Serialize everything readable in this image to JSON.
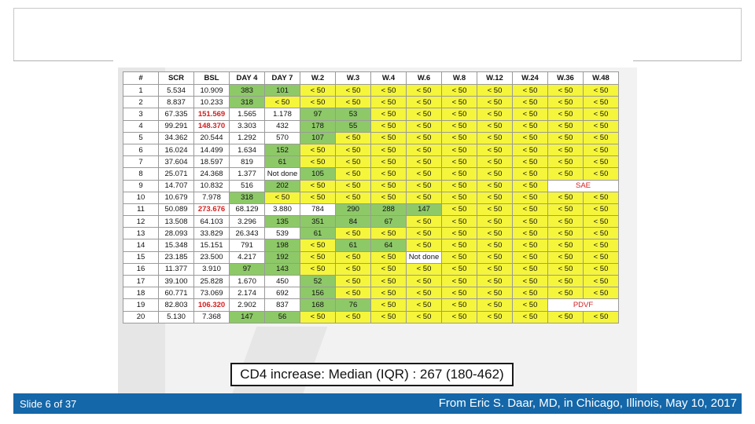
{
  "table": {
    "headers": [
      "#",
      "SCR",
      "BSL",
      "DAY 4",
      "DAY 7",
      "W.2",
      "W.3",
      "W.4",
      "W.6",
      "W.8",
      "W.12",
      "W.24",
      "W.36",
      "W.48"
    ],
    "rows": [
      [
        {
          "v": "1",
          "c": "w"
        },
        {
          "v": "5.534",
          "c": "w"
        },
        {
          "v": "10.909",
          "c": "w"
        },
        {
          "v": "383",
          "c": "g"
        },
        {
          "v": "101",
          "c": "g"
        },
        {
          "v": "< 50",
          "c": "y"
        },
        {
          "v": "< 50",
          "c": "y"
        },
        {
          "v": "< 50",
          "c": "y"
        },
        {
          "v": "< 50",
          "c": "y"
        },
        {
          "v": "< 50",
          "c": "y"
        },
        {
          "v": "< 50",
          "c": "y"
        },
        {
          "v": "< 50",
          "c": "y"
        },
        {
          "v": "< 50",
          "c": "y"
        },
        {
          "v": "< 50",
          "c": "y"
        }
      ],
      [
        {
          "v": "2",
          "c": "w"
        },
        {
          "v": "8.837",
          "c": "w"
        },
        {
          "v": "10.233",
          "c": "w"
        },
        {
          "v": "318",
          "c": "g"
        },
        {
          "v": "< 50",
          "c": "y"
        },
        {
          "v": "< 50",
          "c": "y"
        },
        {
          "v": "< 50",
          "c": "y"
        },
        {
          "v": "< 50",
          "c": "y"
        },
        {
          "v": "< 50",
          "c": "y"
        },
        {
          "v": "< 50",
          "c": "y"
        },
        {
          "v": "< 50",
          "c": "y"
        },
        {
          "v": "< 50",
          "c": "y"
        },
        {
          "v": "< 50",
          "c": "y"
        },
        {
          "v": "< 50",
          "c": "y"
        }
      ],
      [
        {
          "v": "3",
          "c": "w"
        },
        {
          "v": "67.335",
          "c": "w"
        },
        {
          "v": "151.569",
          "c": "w",
          "s": "red"
        },
        {
          "v": "1.565",
          "c": "w"
        },
        {
          "v": "1.178",
          "c": "w"
        },
        {
          "v": "97",
          "c": "g"
        },
        {
          "v": "53",
          "c": "g"
        },
        {
          "v": "< 50",
          "c": "y"
        },
        {
          "v": "< 50",
          "c": "y"
        },
        {
          "v": "< 50",
          "c": "y"
        },
        {
          "v": "< 50",
          "c": "y"
        },
        {
          "v": "< 50",
          "c": "y"
        },
        {
          "v": "< 50",
          "c": "y"
        },
        {
          "v": "< 50",
          "c": "y"
        }
      ],
      [
        {
          "v": "4",
          "c": "w"
        },
        {
          "v": "99.291",
          "c": "w"
        },
        {
          "v": "148.370",
          "c": "w",
          "s": "red"
        },
        {
          "v": "3.303",
          "c": "w"
        },
        {
          "v": "432",
          "c": "w"
        },
        {
          "v": "178",
          "c": "g"
        },
        {
          "v": "55",
          "c": "g"
        },
        {
          "v": "< 50",
          "c": "y"
        },
        {
          "v": "< 50",
          "c": "y"
        },
        {
          "v": "< 50",
          "c": "y"
        },
        {
          "v": "< 50",
          "c": "y"
        },
        {
          "v": "< 50",
          "c": "y"
        },
        {
          "v": "< 50",
          "c": "y"
        },
        {
          "v": "< 50",
          "c": "y"
        }
      ],
      [
        {
          "v": "5",
          "c": "w"
        },
        {
          "v": "34.362",
          "c": "w"
        },
        {
          "v": "20.544",
          "c": "w"
        },
        {
          "v": "1.292",
          "c": "w"
        },
        {
          "v": "570",
          "c": "w"
        },
        {
          "v": "107",
          "c": "g"
        },
        {
          "v": "< 50",
          "c": "y"
        },
        {
          "v": "< 50",
          "c": "y"
        },
        {
          "v": "< 50",
          "c": "y"
        },
        {
          "v": "< 50",
          "c": "y"
        },
        {
          "v": "< 50",
          "c": "y"
        },
        {
          "v": "< 50",
          "c": "y"
        },
        {
          "v": "< 50",
          "c": "y"
        },
        {
          "v": "< 50",
          "c": "y"
        }
      ],
      [
        {
          "v": "6",
          "c": "w"
        },
        {
          "v": "16.024",
          "c": "w"
        },
        {
          "v": "14.499",
          "c": "w"
        },
        {
          "v": "1.634",
          "c": "w"
        },
        {
          "v": "152",
          "c": "g"
        },
        {
          "v": "< 50",
          "c": "y"
        },
        {
          "v": "< 50",
          "c": "y"
        },
        {
          "v": "< 50",
          "c": "y"
        },
        {
          "v": "< 50",
          "c": "y"
        },
        {
          "v": "< 50",
          "c": "y"
        },
        {
          "v": "< 50",
          "c": "y"
        },
        {
          "v": "< 50",
          "c": "y"
        },
        {
          "v": "< 50",
          "c": "y"
        },
        {
          "v": "< 50",
          "c": "y"
        }
      ],
      [
        {
          "v": "7",
          "c": "w"
        },
        {
          "v": "37.604",
          "c": "w"
        },
        {
          "v": "18.597",
          "c": "w"
        },
        {
          "v": "819",
          "c": "w"
        },
        {
          "v": "61",
          "c": "g"
        },
        {
          "v": "< 50",
          "c": "y"
        },
        {
          "v": "< 50",
          "c": "y"
        },
        {
          "v": "< 50",
          "c": "y"
        },
        {
          "v": "< 50",
          "c": "y"
        },
        {
          "v": "< 50",
          "c": "y"
        },
        {
          "v": "< 50",
          "c": "y"
        },
        {
          "v": "< 50",
          "c": "y"
        },
        {
          "v": "< 50",
          "c": "y"
        },
        {
          "v": "< 50",
          "c": "y"
        }
      ],
      [
        {
          "v": "8",
          "c": "w"
        },
        {
          "v": "25.071",
          "c": "w"
        },
        {
          "v": "24.368",
          "c": "w"
        },
        {
          "v": "1.377",
          "c": "w"
        },
        {
          "v": "Not done",
          "c": "w"
        },
        {
          "v": "105",
          "c": "g"
        },
        {
          "v": "< 50",
          "c": "y"
        },
        {
          "v": "< 50",
          "c": "y"
        },
        {
          "v": "< 50",
          "c": "y"
        },
        {
          "v": "< 50",
          "c": "y"
        },
        {
          "v": "< 50",
          "c": "y"
        },
        {
          "v": "< 50",
          "c": "y"
        },
        {
          "v": "< 50",
          "c": "y"
        },
        {
          "v": "< 50",
          "c": "y"
        }
      ],
      [
        {
          "v": "9",
          "c": "w"
        },
        {
          "v": "14.707",
          "c": "w"
        },
        {
          "v": "10.832",
          "c": "w"
        },
        {
          "v": "516",
          "c": "w"
        },
        {
          "v": "202",
          "c": "g"
        },
        {
          "v": "< 50",
          "c": "y"
        },
        {
          "v": "< 50",
          "c": "y"
        },
        {
          "v": "< 50",
          "c": "y"
        },
        {
          "v": "< 50",
          "c": "y"
        },
        {
          "v": "< 50",
          "c": "y"
        },
        {
          "v": "< 50",
          "c": "y"
        },
        {
          "v": "< 50",
          "c": "y"
        },
        {
          "v": "SAE",
          "c": "w",
          "s": "redplain",
          "span": 2
        }
      ],
      [
        {
          "v": "10",
          "c": "w"
        },
        {
          "v": "10.679",
          "c": "w"
        },
        {
          "v": "7.978",
          "c": "w"
        },
        {
          "v": "318",
          "c": "g"
        },
        {
          "v": "< 50",
          "c": "y"
        },
        {
          "v": "< 50",
          "c": "y"
        },
        {
          "v": "< 50",
          "c": "y"
        },
        {
          "v": "< 50",
          "c": "y"
        },
        {
          "v": "< 50",
          "c": "y"
        },
        {
          "v": "< 50",
          "c": "y"
        },
        {
          "v": "< 50",
          "c": "y"
        },
        {
          "v": "< 50",
          "c": "y"
        },
        {
          "v": "< 50",
          "c": "y"
        },
        {
          "v": "< 50",
          "c": "y"
        }
      ],
      [
        {
          "v": "11",
          "c": "w"
        },
        {
          "v": "50.089",
          "c": "w"
        },
        {
          "v": "273.676",
          "c": "w",
          "s": "red"
        },
        {
          "v": "68.129",
          "c": "w"
        },
        {
          "v": "3.880",
          "c": "w"
        },
        {
          "v": "784",
          "c": "w"
        },
        {
          "v": "290",
          "c": "g"
        },
        {
          "v": "288",
          "c": "g"
        },
        {
          "v": "147",
          "c": "g"
        },
        {
          "v": "< 50",
          "c": "y"
        },
        {
          "v": "< 50",
          "c": "y"
        },
        {
          "v": "< 50",
          "c": "y"
        },
        {
          "v": "< 50",
          "c": "y"
        },
        {
          "v": "< 50",
          "c": "y"
        }
      ],
      [
        {
          "v": "12",
          "c": "w"
        },
        {
          "v": "13.508",
          "c": "w"
        },
        {
          "v": "64.103",
          "c": "w"
        },
        {
          "v": "3.296",
          "c": "w"
        },
        {
          "v": "135",
          "c": "g"
        },
        {
          "v": "351",
          "c": "g"
        },
        {
          "v": "84",
          "c": "g"
        },
        {
          "v": "67",
          "c": "g"
        },
        {
          "v": "< 50",
          "c": "y"
        },
        {
          "v": "< 50",
          "c": "y"
        },
        {
          "v": "< 50",
          "c": "y"
        },
        {
          "v": "< 50",
          "c": "y"
        },
        {
          "v": "< 50",
          "c": "y"
        },
        {
          "v": "< 50",
          "c": "y"
        }
      ],
      [
        {
          "v": "13",
          "c": "w"
        },
        {
          "v": "28.093",
          "c": "w"
        },
        {
          "v": "33.829",
          "c": "w"
        },
        {
          "v": "26.343",
          "c": "w"
        },
        {
          "v": "539",
          "c": "w"
        },
        {
          "v": "61",
          "c": "g"
        },
        {
          "v": "< 50",
          "c": "y"
        },
        {
          "v": "< 50",
          "c": "y"
        },
        {
          "v": "< 50",
          "c": "y"
        },
        {
          "v": "< 50",
          "c": "y"
        },
        {
          "v": "< 50",
          "c": "y"
        },
        {
          "v": "< 50",
          "c": "y"
        },
        {
          "v": "< 50",
          "c": "y"
        },
        {
          "v": "< 50",
          "c": "y"
        }
      ],
      [
        {
          "v": "14",
          "c": "w"
        },
        {
          "v": "15.348",
          "c": "w"
        },
        {
          "v": "15.151",
          "c": "w"
        },
        {
          "v": "791",
          "c": "w"
        },
        {
          "v": "198",
          "c": "g"
        },
        {
          "v": "< 50",
          "c": "y"
        },
        {
          "v": "61",
          "c": "g"
        },
        {
          "v": "64",
          "c": "g"
        },
        {
          "v": "< 50",
          "c": "y"
        },
        {
          "v": "< 50",
          "c": "y"
        },
        {
          "v": "< 50",
          "c": "y"
        },
        {
          "v": "< 50",
          "c": "y"
        },
        {
          "v": "< 50",
          "c": "y"
        },
        {
          "v": "< 50",
          "c": "y"
        }
      ],
      [
        {
          "v": "15",
          "c": "w"
        },
        {
          "v": "23.185",
          "c": "w"
        },
        {
          "v": "23.500",
          "c": "w"
        },
        {
          "v": "4.217",
          "c": "w"
        },
        {
          "v": "192",
          "c": "g"
        },
        {
          "v": "< 50",
          "c": "y"
        },
        {
          "v": "< 50",
          "c": "y"
        },
        {
          "v": "< 50",
          "c": "y"
        },
        {
          "v": "Not done",
          "c": "w"
        },
        {
          "v": "< 50",
          "c": "y"
        },
        {
          "v": "< 50",
          "c": "y"
        },
        {
          "v": "< 50",
          "c": "y"
        },
        {
          "v": "< 50",
          "c": "y"
        },
        {
          "v": "< 50",
          "c": "y"
        }
      ],
      [
        {
          "v": "16",
          "c": "w"
        },
        {
          "v": "11.377",
          "c": "w"
        },
        {
          "v": "3.910",
          "c": "w"
        },
        {
          "v": "97",
          "c": "g"
        },
        {
          "v": "143",
          "c": "g"
        },
        {
          "v": "< 50",
          "c": "y"
        },
        {
          "v": "< 50",
          "c": "y"
        },
        {
          "v": "< 50",
          "c": "y"
        },
        {
          "v": "< 50",
          "c": "y"
        },
        {
          "v": "< 50",
          "c": "y"
        },
        {
          "v": "< 50",
          "c": "y"
        },
        {
          "v": "< 50",
          "c": "y"
        },
        {
          "v": "< 50",
          "c": "y"
        },
        {
          "v": "< 50",
          "c": "y"
        }
      ],
      [
        {
          "v": "17",
          "c": "w"
        },
        {
          "v": "39.100",
          "c": "w"
        },
        {
          "v": "25.828",
          "c": "w"
        },
        {
          "v": "1.670",
          "c": "w"
        },
        {
          "v": "450",
          "c": "w"
        },
        {
          "v": "52",
          "c": "g"
        },
        {
          "v": "< 50",
          "c": "y"
        },
        {
          "v": "< 50",
          "c": "y"
        },
        {
          "v": "< 50",
          "c": "y"
        },
        {
          "v": "< 50",
          "c": "y"
        },
        {
          "v": "< 50",
          "c": "y"
        },
        {
          "v": "< 50",
          "c": "y"
        },
        {
          "v": "< 50",
          "c": "y"
        },
        {
          "v": "< 50",
          "c": "y"
        }
      ],
      [
        {
          "v": "18",
          "c": "w"
        },
        {
          "v": "60.771",
          "c": "w"
        },
        {
          "v": "73.069",
          "c": "w"
        },
        {
          "v": "2.174",
          "c": "w"
        },
        {
          "v": "692",
          "c": "w"
        },
        {
          "v": "156",
          "c": "g"
        },
        {
          "v": "< 50",
          "c": "y"
        },
        {
          "v": "< 50",
          "c": "y"
        },
        {
          "v": "< 50",
          "c": "y"
        },
        {
          "v": "< 50",
          "c": "y"
        },
        {
          "v": "< 50",
          "c": "y"
        },
        {
          "v": "< 50",
          "c": "y"
        },
        {
          "v": "< 50",
          "c": "y"
        },
        {
          "v": "< 50",
          "c": "y"
        }
      ],
      [
        {
          "v": "19",
          "c": "w"
        },
        {
          "v": "82.803",
          "c": "w"
        },
        {
          "v": "106.320",
          "c": "w",
          "s": "red"
        },
        {
          "v": "2.902",
          "c": "w"
        },
        {
          "v": "837",
          "c": "w"
        },
        {
          "v": "168",
          "c": "g"
        },
        {
          "v": "76",
          "c": "g"
        },
        {
          "v": "< 50",
          "c": "y"
        },
        {
          "v": "< 50",
          "c": "y"
        },
        {
          "v": "< 50",
          "c": "y"
        },
        {
          "v": "< 50",
          "c": "y"
        },
        {
          "v": "< 50",
          "c": "y"
        },
        {
          "v": "PDVF",
          "c": "w",
          "s": "redplain",
          "span": 2
        }
      ],
      [
        {
          "v": "20",
          "c": "w"
        },
        {
          "v": "5.130",
          "c": "w"
        },
        {
          "v": "7.368",
          "c": "w"
        },
        {
          "v": "147",
          "c": "g"
        },
        {
          "v": "56",
          "c": "g"
        },
        {
          "v": "< 50",
          "c": "y"
        },
        {
          "v": "< 50",
          "c": "y"
        },
        {
          "v": "< 50",
          "c": "y"
        },
        {
          "v": "< 50",
          "c": "y"
        },
        {
          "v": "< 50",
          "c": "y"
        },
        {
          "v": "< 50",
          "c": "y"
        },
        {
          "v": "< 50",
          "c": "y"
        },
        {
          "v": "< 50",
          "c": "y"
        },
        {
          "v": "< 50",
          "c": "y"
        }
      ]
    ]
  },
  "summary": "CD4 increase: Median (IQR) : 267 (180-462)",
  "footer": {
    "slide_counter": "Slide 6 of 37",
    "credit": "From Eric S. Daar, MD, in Chicago, Illinois, May 10, 2017"
  },
  "colors": {
    "green": "#8ec968",
    "yellow": "#f5f53c",
    "red_text": "#d32020",
    "footer_bg": "#1467a9"
  }
}
